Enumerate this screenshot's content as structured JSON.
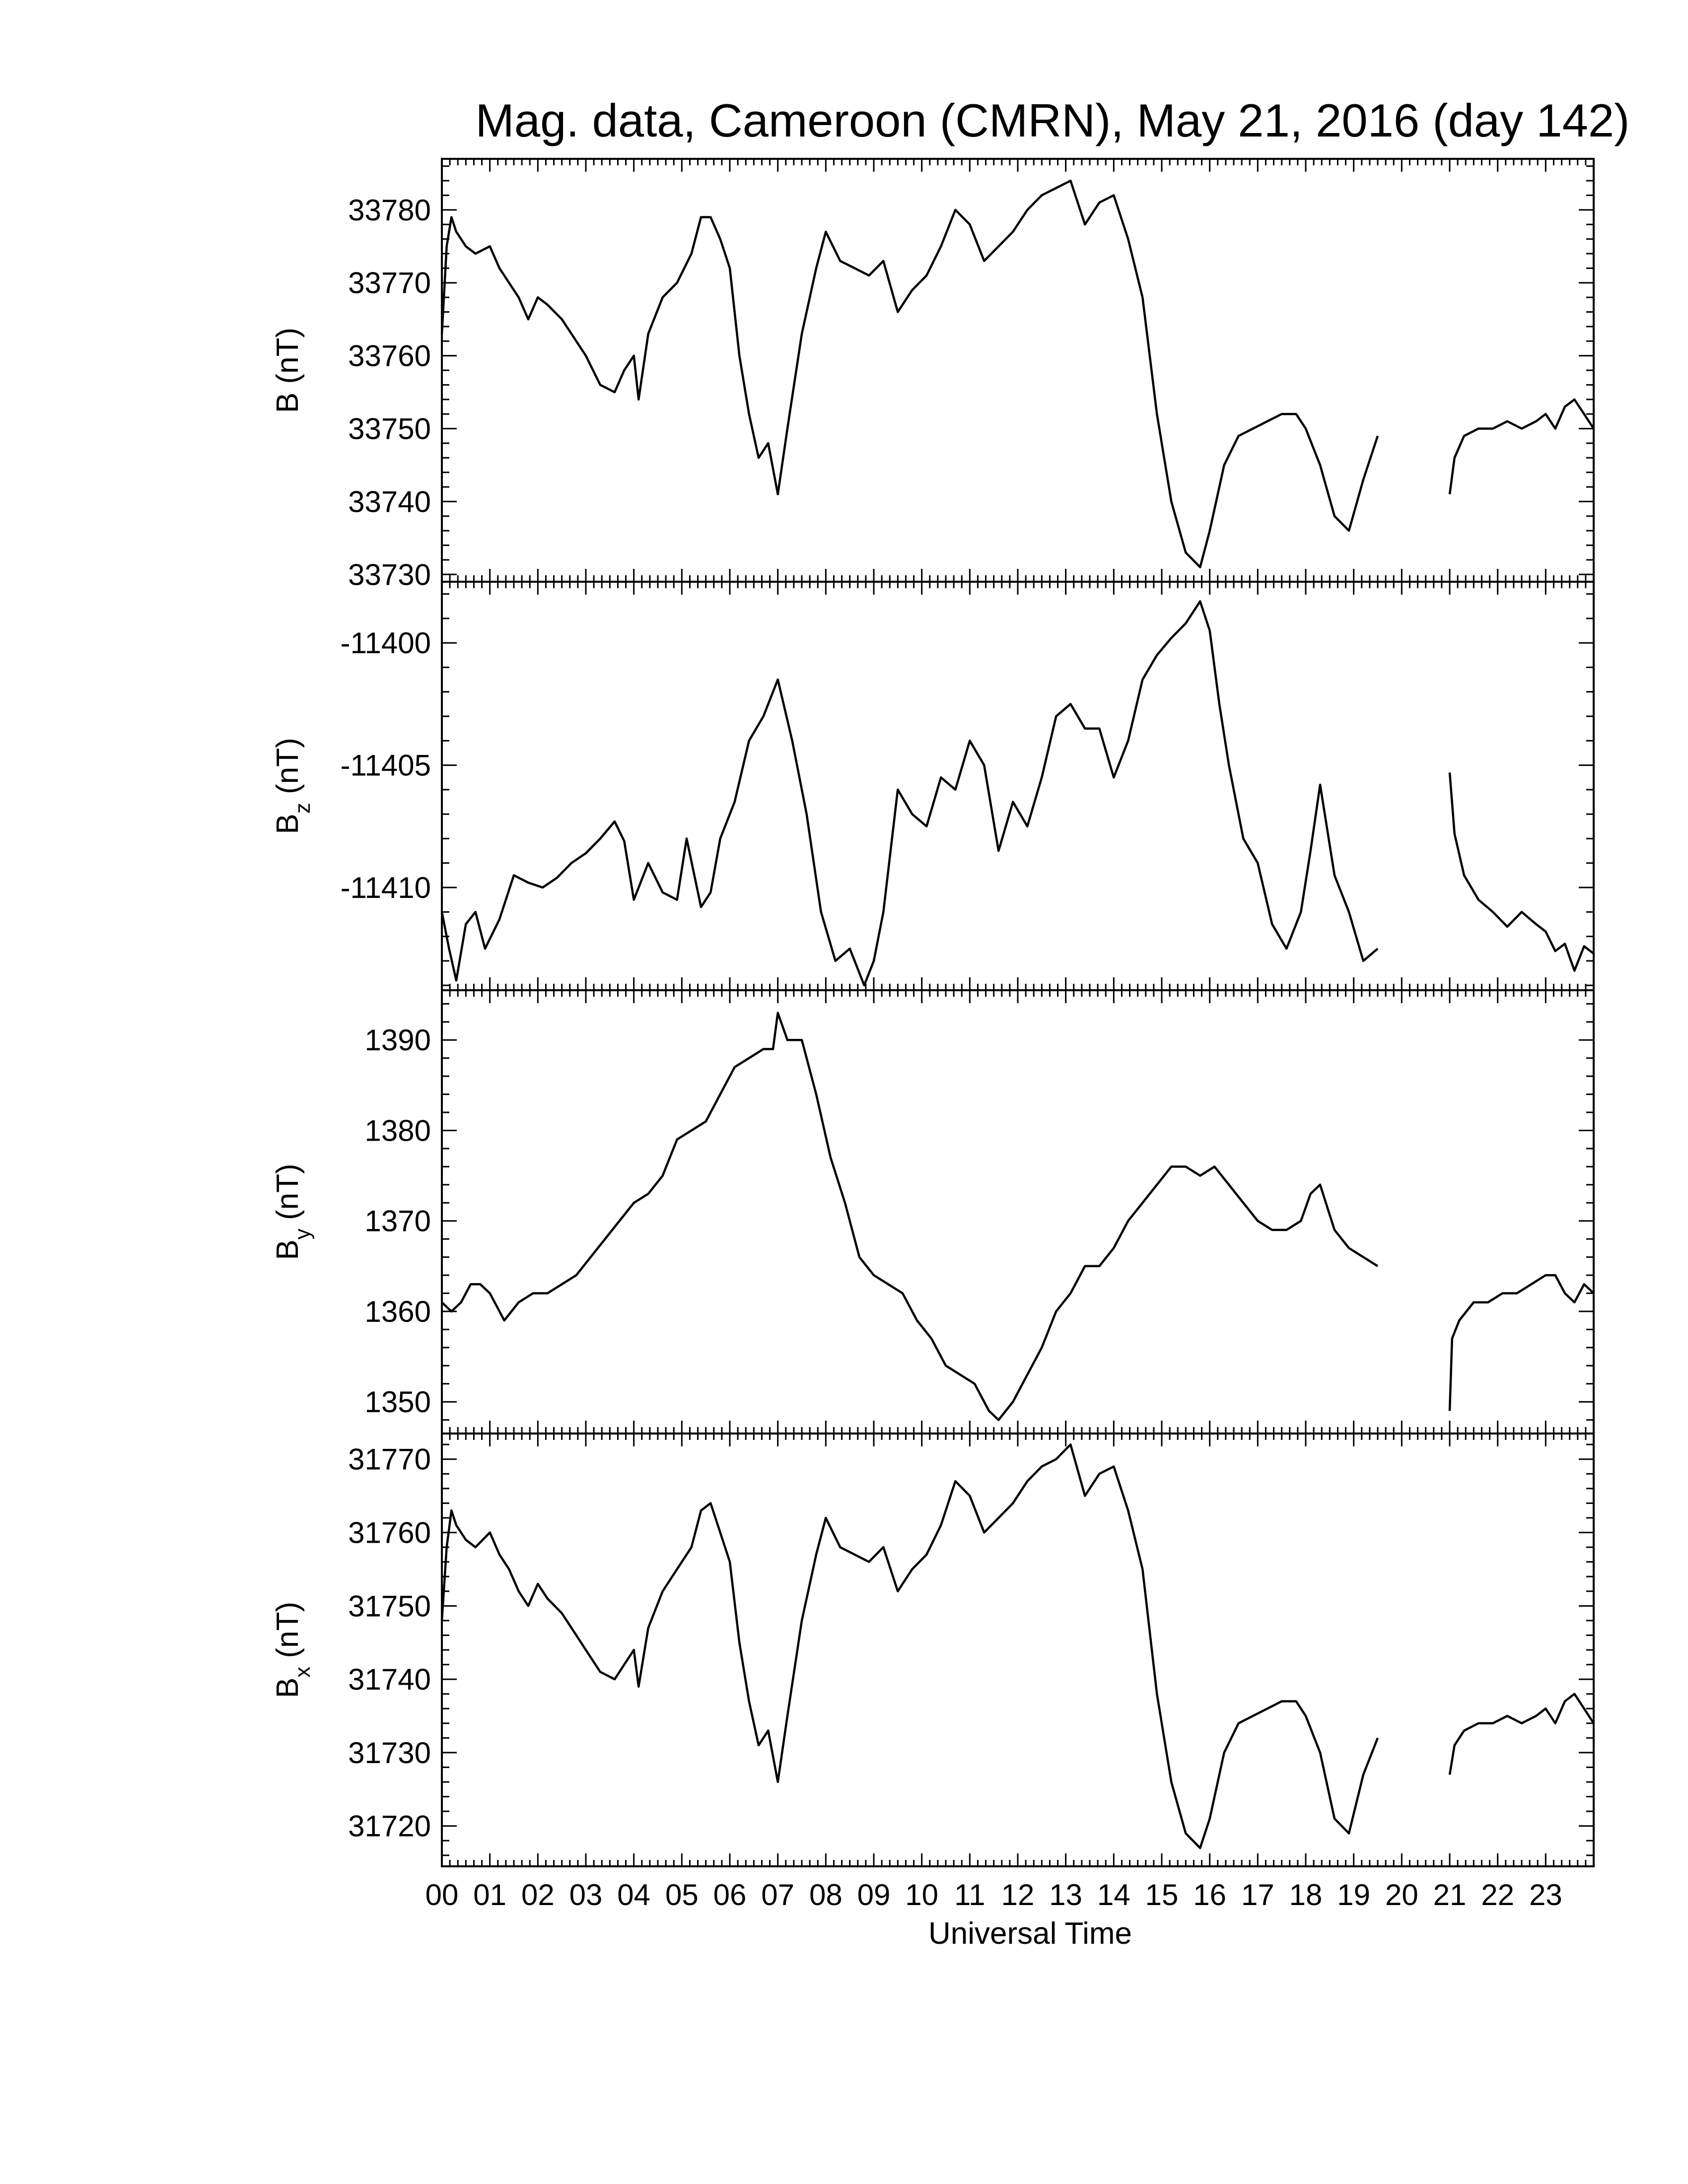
{
  "chart_data": {
    "type": "line",
    "title": "Mag. data, Cameroon (CMRN), May 21, 2016 (day 142)",
    "xlabel": "Universal Time",
    "xlim": [
      0,
      24
    ],
    "x_ticks": [
      "00",
      "01",
      "02",
      "03",
      "04",
      "05",
      "06",
      "07",
      "08",
      "09",
      "10",
      "11",
      "12",
      "13",
      "14",
      "15",
      "16",
      "17",
      "18",
      "19",
      "20",
      "21",
      "22",
      "23"
    ],
    "x_gap": [
      19.5,
      21.0
    ],
    "panels": [
      {
        "ylabel": "B (nT)",
        "ylabel_main": "B",
        "ylabel_sub": "",
        "ylabel_unit": "(nT)",
        "ylim": [
          33729,
          33787
        ],
        "yticks": [
          33730,
          33740,
          33750,
          33760,
          33770,
          33780
        ],
        "series": [
          {
            "x": [
              0,
              0.1,
              0.2,
              0.3,
              0.5,
              0.7,
              1.0,
              1.2,
              1.4,
              1.6,
              1.8,
              2.0,
              2.2,
              2.5,
              2.8,
              3.0,
              3.3,
              3.6,
              3.8,
              4.0,
              4.1,
              4.3,
              4.6,
              4.9,
              5.2,
              5.4,
              5.6,
              5.8,
              6.0,
              6.2,
              6.4,
              6.6,
              6.8,
              7.0,
              7.2,
              7.5,
              7.8,
              8.0,
              8.3,
              8.6,
              8.9,
              9.2,
              9.5,
              9.8,
              10.1,
              10.4,
              10.7,
              11.0,
              11.3,
              11.6,
              11.9,
              12.2,
              12.5,
              12.8,
              13.1,
              13.4,
              13.7,
              14.0,
              14.3,
              14.6,
              14.9,
              15.2,
              15.5,
              15.8,
              16.0,
              16.3,
              16.6,
              16.9,
              17.2,
              17.5,
              17.8,
              18.0,
              18.3,
              18.6,
              18.9,
              19.2,
              19.5
            ],
            "y": [
              33763,
              33775,
              33779,
              33777,
              33775,
              33774,
              33775,
              33772,
              33770,
              33768,
              33765,
              33768,
              33767,
              33765,
              33762,
              33760,
              33756,
              33755,
              33758,
              33760,
              33754,
              33763,
              33768,
              33770,
              33774,
              33779,
              33779,
              33776,
              33772,
              33760,
              33752,
              33746,
              33748,
              33741,
              33750,
              33763,
              33772,
              33777,
              33773,
              33772,
              33771,
              33773,
              33766,
              33769,
              33771,
              33775,
              33780,
              33778,
              33773,
              33775,
              33777,
              33780,
              33782,
              33783,
              33784,
              33778,
              33781,
              33782,
              33776,
              33768,
              33752,
              33740,
              33733,
              33731,
              33736,
              33745,
              33749,
              33750,
              33751,
              33752,
              33752,
              33750,
              33745,
              33738,
              33736,
              33743,
              33749
            ]
          },
          {
            "x": [
              21.0,
              21.1,
              21.3,
              21.6,
              21.9,
              22.2,
              22.5,
              22.8,
              23.0,
              23.2,
              23.4,
              23.6,
              23.8,
              24.0
            ],
            "y": [
              33741,
              33746,
              33749,
              33750,
              33750,
              33751,
              33750,
              33751,
              33752,
              33750,
              33753,
              33754,
              33752,
              33750
            ]
          }
        ]
      },
      {
        "ylabel": "Bz (nT)",
        "ylabel_main": "B",
        "ylabel_sub": "z",
        "ylabel_unit": "(nT)",
        "ylim": [
          -11414.2,
          -11397.5
        ],
        "yticks": [
          -11400,
          -11405,
          -11410
        ],
        "series": [
          {
            "x": [
              0,
              0.15,
              0.3,
              0.5,
              0.7,
              0.9,
              1.2,
              1.5,
              1.8,
              2.1,
              2.4,
              2.7,
              3.0,
              3.3,
              3.6,
              3.8,
              4.0,
              4.3,
              4.6,
              4.9,
              5.1,
              5.4,
              5.6,
              5.8,
              6.1,
              6.4,
              6.7,
              7.0,
              7.3,
              7.6,
              7.9,
              8.2,
              8.5,
              8.8,
              9.0,
              9.2,
              9.5,
              9.8,
              10.1,
              10.4,
              10.7,
              11.0,
              11.3,
              11.6,
              11.9,
              12.2,
              12.5,
              12.8,
              13.1,
              13.4,
              13.7,
              14.0,
              14.3,
              14.6,
              14.9,
              15.2,
              15.5,
              15.8,
              16.0,
              16.2,
              16.4,
              16.7,
              17.0,
              17.3,
              17.6,
              17.9,
              18.1,
              18.3,
              18.6,
              18.9,
              19.2,
              19.5
            ],
            "y": [
              -11411,
              -11412.5,
              -11413.8,
              -11411.5,
              -11411.0,
              -11412.5,
              -11411.3,
              -11409.5,
              -11409.8,
              -11410.0,
              -11409.6,
              -11409.0,
              -11408.6,
              -11408.0,
              -11407.3,
              -11408.1,
              -11410.5,
              -11409.0,
              -11410.2,
              -11410.5,
              -11408.0,
              -11410.8,
              -11410.2,
              -11408.0,
              -11406.5,
              -11404.0,
              -11403.0,
              -11401.5,
              -11404.0,
              -11407.0,
              -11411.0,
              -11413.0,
              -11412.5,
              -11414.0,
              -11413.0,
              -11411.0,
              -11406.0,
              -11407.0,
              -11407.5,
              -11405.5,
              -11406.0,
              -11404.0,
              -11405.0,
              -11408.5,
              -11406.5,
              -11407.5,
              -11405.5,
              -11403.0,
              -11402.5,
              -11403.5,
              -11403.5,
              -11405.5,
              -11404.0,
              -11401.5,
              -11400.5,
              -11399.8,
              -11399.2,
              -11398.3,
              -11399.5,
              -11402.5,
              -11405.0,
              -11408.0,
              -11409.0,
              -11411.5,
              -11412.5,
              -11411.0,
              -11408.5,
              -11405.8,
              -11409.5,
              -11411.0,
              -11413.0,
              -11412.5
            ]
          },
          {
            "x": [
              21.0,
              21.1,
              21.3,
              21.6,
              21.9,
              22.2,
              22.5,
              22.8,
              23.0,
              23.2,
              23.4,
              23.6,
              23.8,
              24.0
            ],
            "y": [
              -11405.3,
              -11407.8,
              -11409.5,
              -11410.5,
              -11411.0,
              -11411.6,
              -11411.0,
              -11411.5,
              -11411.8,
              -11412.6,
              -11412.3,
              -11413.4,
              -11412.4,
              -11412.7
            ]
          }
        ]
      },
      {
        "ylabel": "By (nT)",
        "ylabel_main": "B",
        "ylabel_sub": "y",
        "ylabel_unit": "(nT)",
        "ylim": [
          1346.5,
          1395.5
        ],
        "yticks": [
          1350,
          1360,
          1370,
          1380,
          1390
        ],
        "series": [
          {
            "x": [
              0,
              0.2,
              0.4,
              0.6,
              0.8,
              1.0,
              1.3,
              1.6,
              1.9,
              2.2,
              2.5,
              2.8,
              3.1,
              3.4,
              3.7,
              4.0,
              4.3,
              4.6,
              4.9,
              5.2,
              5.5,
              5.8,
              6.1,
              6.4,
              6.7,
              6.9,
              7.0,
              7.2,
              7.5,
              7.8,
              8.1,
              8.4,
              8.7,
              9.0,
              9.3,
              9.6,
              9.9,
              10.2,
              10.5,
              10.8,
              11.1,
              11.4,
              11.6,
              11.9,
              12.2,
              12.5,
              12.8,
              13.1,
              13.4,
              13.7,
              14.0,
              14.3,
              14.6,
              14.9,
              15.2,
              15.5,
              15.8,
              16.1,
              16.4,
              16.7,
              17.0,
              17.3,
              17.6,
              17.9,
              18.1,
              18.3,
              18.6,
              18.9,
              19.2,
              19.5
            ],
            "y": [
              1361,
              1360,
              1361,
              1363,
              1363,
              1362,
              1359,
              1361,
              1362,
              1362,
              1363,
              1364,
              1366,
              1368,
              1370,
              1372,
              1373,
              1375,
              1379,
              1380,
              1381,
              1384,
              1387,
              1388,
              1389,
              1389,
              1393,
              1390,
              1390,
              1384,
              1377,
              1372,
              1366,
              1364,
              1363,
              1362,
              1359,
              1357,
              1354,
              1353,
              1352,
              1349,
              1348,
              1350,
              1353,
              1356,
              1360,
              1362,
              1365,
              1365,
              1367,
              1370,
              1372,
              1374,
              1376,
              1376,
              1375,
              1376,
              1374,
              1372,
              1370,
              1369,
              1369,
              1370,
              1373,
              1374,
              1369,
              1367,
              1366,
              1365
            ]
          },
          {
            "x": [
              21.0,
              21.05,
              21.2,
              21.5,
              21.8,
              22.1,
              22.4,
              22.7,
              23.0,
              23.2,
              23.4,
              23.6,
              23.8,
              24.0
            ],
            "y": [
              1349,
              1357,
              1359,
              1361,
              1361,
              1362,
              1362,
              1363,
              1364,
              1364,
              1362,
              1361,
              1363,
              1362
            ]
          }
        ]
      },
      {
        "ylabel": "Bx (nT)",
        "ylabel_main": "B",
        "ylabel_sub": "x",
        "ylabel_unit": "(nT)",
        "ylim": [
          1714.5,
          1773.5
        ],
        "yticks": [
          31720,
          31730,
          31740,
          31750,
          31760,
          31770
        ],
        "ytick_offset": 30000,
        "series": [
          {
            "x": [
              0,
              0.1,
              0.2,
              0.3,
              0.5,
              0.7,
              1.0,
              1.2,
              1.4,
              1.6,
              1.8,
              2.0,
              2.2,
              2.5,
              2.8,
              3.0,
              3.3,
              3.6,
              3.8,
              4.0,
              4.1,
              4.3,
              4.6,
              4.9,
              5.2,
              5.4,
              5.6,
              5.8,
              6.0,
              6.2,
              6.4,
              6.6,
              6.8,
              7.0,
              7.2,
              7.5,
              7.8,
              8.0,
              8.3,
              8.6,
              8.9,
              9.2,
              9.5,
              9.8,
              10.1,
              10.4,
              10.7,
              11.0,
              11.3,
              11.6,
              11.9,
              12.2,
              12.5,
              12.8,
              13.1,
              13.4,
              13.7,
              14.0,
              14.3,
              14.6,
              14.9,
              15.2,
              15.5,
              15.8,
              16.0,
              16.3,
              16.6,
              16.9,
              17.2,
              17.5,
              17.8,
              18.0,
              18.3,
              18.6,
              18.9,
              19.2,
              19.5
            ],
            "y": [
              1748,
              1758,
              1763,
              1761,
              1759,
              1758,
              1760,
              1757,
              1755,
              1752,
              1750,
              1753,
              1751,
              1749,
              1746,
              1744,
              1741,
              1740,
              1742,
              1744,
              1739,
              1747,
              1752,
              1755,
              1758,
              1763,
              1764,
              1760,
              1756,
              1745,
              1737,
              1731,
              1733,
              1726,
              1735,
              1748,
              1757,
              1762,
              1758,
              1757,
              1756,
              1758,
              1752,
              1755,
              1757,
              1761,
              1767,
              1765,
              1760,
              1762,
              1764,
              1767,
              1769,
              1770,
              1772,
              1765,
              1768,
              1769,
              1763,
              1755,
              1738,
              1726,
              1719,
              1717,
              1721,
              1730,
              1734,
              1735,
              1736,
              1737,
              1737,
              1735,
              1730,
              1721,
              1719,
              1727,
              1732
            ]
          },
          {
            "x": [
              21.0,
              21.1,
              21.3,
              21.6,
              21.9,
              22.2,
              22.5,
              22.8,
              23.0,
              23.2,
              23.4,
              23.6,
              23.8,
              24.0
            ],
            "y": [
              1727,
              1731,
              1733,
              1734,
              1734,
              1735,
              1734,
              1735,
              1736,
              1734,
              1737,
              1738,
              1736,
              1734
            ]
          }
        ]
      }
    ]
  }
}
